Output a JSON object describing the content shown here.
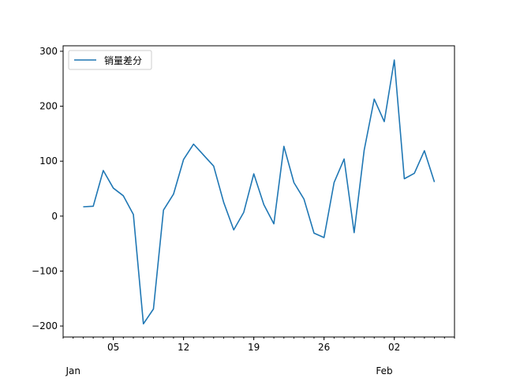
{
  "chart_data": {
    "type": "line",
    "title": "",
    "xlabel": "",
    "ylabel": "",
    "x": [
      "2023-01-02",
      "2023-01-03",
      "2023-01-04",
      "2023-01-05",
      "2023-01-06",
      "2023-01-07",
      "2023-01-08",
      "2023-01-09",
      "2023-01-10",
      "2023-01-11",
      "2023-01-12",
      "2023-01-13",
      "2023-01-14",
      "2023-01-15",
      "2023-01-16",
      "2023-01-17",
      "2023-01-18",
      "2023-01-19",
      "2023-01-20",
      "2023-01-21",
      "2023-01-22",
      "2023-01-23",
      "2023-01-24",
      "2023-01-25",
      "2023-01-26",
      "2023-01-27",
      "2023-01-28",
      "2023-01-29",
      "2023-01-30",
      "2023-01-31",
      "2023-02-01",
      "2023-02-02",
      "2023-02-03",
      "2023-02-04",
      "2023-02-05",
      "2023-02-06"
    ],
    "series": [
      {
        "name": "销量差分",
        "color": "#1f77b4",
        "values": [
          17,
          18,
          83,
          51,
          37,
          3,
          -196,
          -169,
          11,
          40,
          103,
          131,
          111,
          91,
          25,
          -25,
          7,
          77,
          21,
          -14,
          127,
          61,
          31,
          -31,
          -39,
          61,
          104,
          -30,
          120,
          213,
          172,
          284,
          68,
          78,
          119,
          62
        ]
      }
    ],
    "xlim": [
      "2022-12-31",
      "2023-02-08"
    ],
    "ylim": [
      -220,
      310
    ],
    "yticks": [
      300,
      200,
      100,
      0,
      -100,
      -200
    ],
    "ytick_labels": [
      "300",
      "200",
      "100",
      "0",
      "−100",
      "−200"
    ],
    "xticks_major": [
      {
        "date": "2023-01-05",
        "label": "05"
      },
      {
        "date": "2023-01-12",
        "label": "12"
      },
      {
        "date": "2023-01-19",
        "label": "19"
      },
      {
        "date": "2023-01-26",
        "label": "26"
      },
      {
        "date": "2023-02-02",
        "label": "02"
      }
    ],
    "x_month_labels": [
      {
        "date": "2023-01-01",
        "label": "Jan"
      },
      {
        "date": "2023-02-01",
        "label": "Feb"
      }
    ],
    "grid": false,
    "legend_position": "top-left"
  }
}
